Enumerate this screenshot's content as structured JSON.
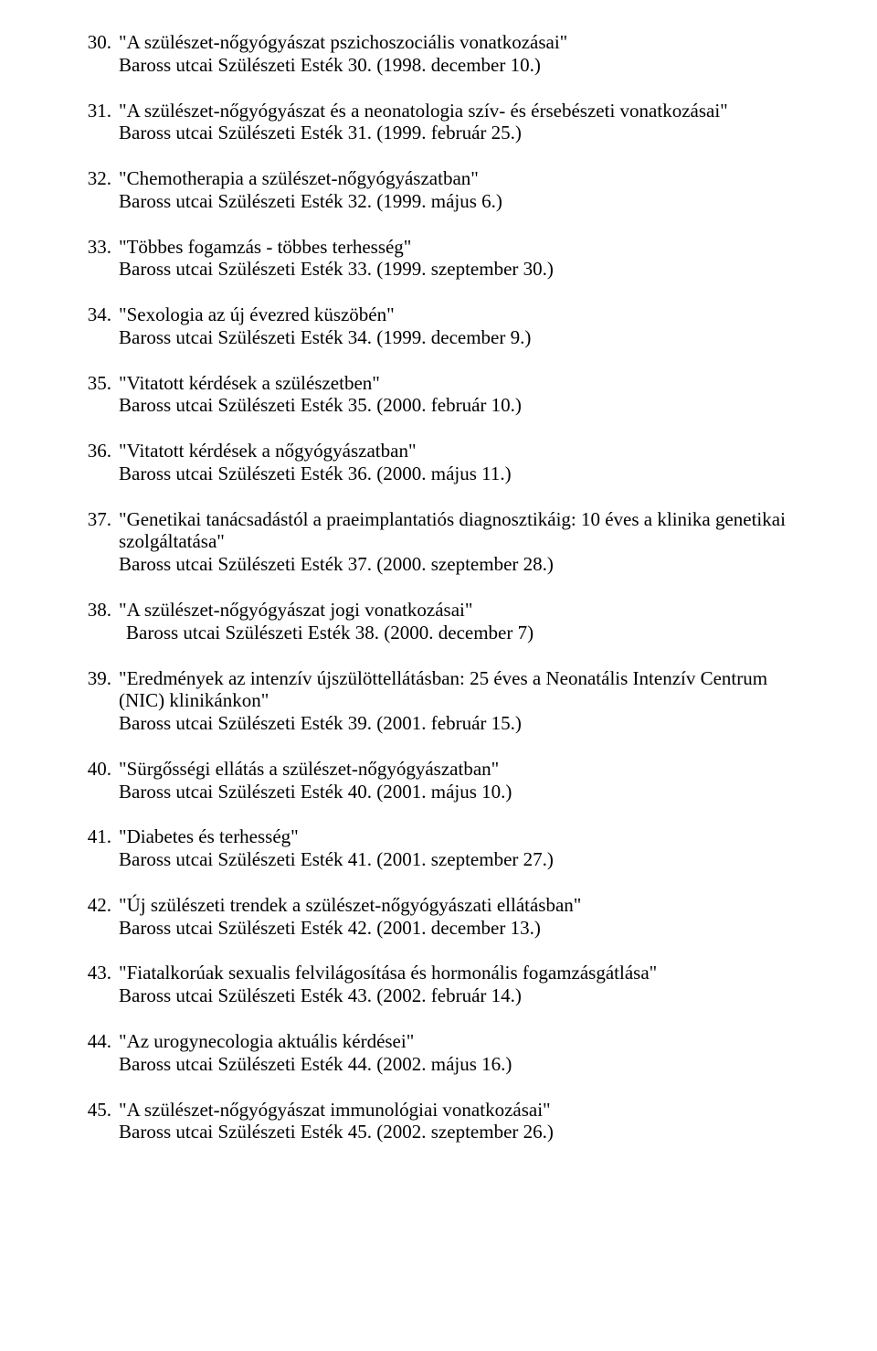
{
  "text_color": "#000000",
  "background_color": "#ffffff",
  "font_family": "Times New Roman",
  "font_size_pt": 16,
  "entries": [
    {
      "num": "30.",
      "title": "\"A szülészet-nőgyógyászat pszichoszociális vonatkozásai\"",
      "venue": "Baross utcai Szülészeti Esték 30. (1998. december 10.)",
      "indented_venue": false
    },
    {
      "num": "31.",
      "title": "\"A szülészet-nőgyógyászat és a neonatologia szív- és érsebészeti vonatkozásai\"",
      "venue": "Baross utcai Szülészeti Esték 31. (1999. február 25.)",
      "indented_venue": false
    },
    {
      "num": "32.",
      "title": "\"Chemotherapia a szülészet-nőgyógyászatban\"",
      "venue": "Baross utcai Szülészeti Esték 32. (1999. május 6.)",
      "indented_venue": false
    },
    {
      "num": "33.",
      "title": "\"Többes fogamzás - többes terhesség\"",
      "venue": "Baross utcai Szülészeti Esték 33. (1999. szeptember 30.)",
      "indented_venue": false
    },
    {
      "num": "34.",
      "title": "\"Sexologia az új évezred küszöbén\"",
      "venue": "Baross utcai Szülészeti Esték 34. (1999. december 9.)",
      "indented_venue": false
    },
    {
      "num": "35.",
      "title": "\"Vitatott kérdések a szülészetben\"",
      "venue": "Baross utcai Szülészeti Esték 35. (2000. február 10.)",
      "indented_venue": false
    },
    {
      "num": "36.",
      "title": "\"Vitatott kérdések a nőgyógyászatban\"",
      "venue": "Baross utcai Szülészeti Esték 36. (2000. május 11.)",
      "indented_venue": false
    },
    {
      "num": "37.",
      "title": "\"Genetikai tanácsadástól a praeimplantatiós diagnosztikáig: 10 éves a klinika genetikai szolgáltatása\"",
      "venue": "Baross utcai Szülészeti Esték 37. (2000. szeptember 28.)",
      "indented_venue": false
    },
    {
      "num": "38.",
      "title": "\"A szülészet-nőgyógyászat jogi vonatkozásai\"",
      "venue": "Baross utcai Szülészeti Esték 38. (2000. december 7)",
      "indented_venue": true
    },
    {
      "num": "39.",
      "title": "\"Eredmények az intenzív újszülöttellátásban: 25 éves a Neonatális Intenzív Centrum (NIC) klinikánkon\"",
      "venue": "Baross utcai Szülészeti Esték 39. (2001. február 15.)",
      "indented_venue": false
    },
    {
      "num": "40.",
      "title": "\"Sürgősségi ellátás a szülészet-nőgyógyászatban\"",
      "venue": "Baross utcai Szülészeti Esték 40. (2001. május 10.)",
      "indented_venue": false
    },
    {
      "num": "41.",
      "title": "\"Diabetes és terhesség\"",
      "venue": "Baross utcai Szülészeti Esték 41. (2001. szeptember 27.)",
      "indented_venue": false
    },
    {
      "num": "42.",
      "title": "\"Új szülészeti trendek a szülészet-nőgyógyászati ellátásban\"",
      "venue": "Baross utcai Szülészeti Esték 42. (2001. december 13.)",
      "indented_venue": false
    },
    {
      "num": "43.",
      "title": "\"Fiatalkorúak sexualis felvilágosítása és hormonális fogamzásgátlása\"",
      "venue": "Baross utcai Szülészeti Esték 43. (2002. február 14.)",
      "indented_venue": false
    },
    {
      "num": "44.",
      "title": "\"Az urogynecologia aktuális kérdései\"",
      "venue": "Baross utcai Szülészeti Esték 44. (2002. május 16.)",
      "indented_venue": false
    },
    {
      "num": "45.",
      "title": "\"A szülészet-nőgyógyászat immunológiai vonatkozásai\"",
      "venue": "Baross utcai Szülészeti Esték 45. (2002. szeptember 26.)",
      "indented_venue": false
    }
  ]
}
